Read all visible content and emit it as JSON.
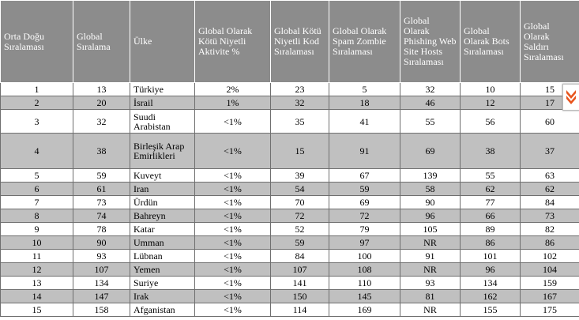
{
  "table": {
    "headers": [
      "Orta Doğu Sıralaması",
      "Global Sıralama",
      "Ülke",
      "Global Olarak Kötü Niyetli Aktivite %",
      "Global Kötü Niyetli Kod Sıralaması",
      "Global Olarak Spam Zombie Sıralaması",
      "Global Olarak Phishing Web Site Hosts Sıralaması",
      "Global Olarak Bots Sıralaması",
      "Global Olarak Saldırı Sıralaması"
    ],
    "rows": [
      [
        "1",
        "13",
        "Türkiye",
        "2%",
        "23",
        "5",
        "32",
        "10",
        "15"
      ],
      [
        "2",
        "20",
        "İsrail",
        "1%",
        "32",
        "18",
        "46",
        "12",
        "17"
      ],
      [
        "3",
        "32",
        "Suudi Arabistan",
        "<1%",
        "35",
        "41",
        "55",
        "56",
        "60"
      ],
      [
        "4",
        "38",
        "Birleşik Arap Emirlikleri",
        "<1%",
        "15",
        "91",
        "69",
        "38",
        "37"
      ],
      [
        "5",
        "59",
        "Kuveyt",
        "<1%",
        "39",
        "67",
        "139",
        "55",
        "63"
      ],
      [
        "6",
        "61",
        "Iran",
        "<1%",
        "54",
        "59",
        "58",
        "62",
        "62"
      ],
      [
        "7",
        "73",
        "Ürdün",
        "<1%",
        "70",
        "69",
        "90",
        "77",
        "84"
      ],
      [
        "8",
        "74",
        "Bahreyn",
        "<1%",
        "72",
        "72",
        "96",
        "66",
        "73"
      ],
      [
        "9",
        "78",
        "Katar",
        "<1%",
        "52",
        "79",
        "105",
        "89",
        "82"
      ],
      [
        "10",
        "90",
        "Umman",
        "<1%",
        "59",
        "97",
        "NR",
        "86",
        "86"
      ],
      [
        "11",
        "93",
        "Lübnan",
        "<1%",
        "84",
        "100",
        "91",
        "101",
        "102"
      ],
      [
        "12",
        "107",
        "Yemen",
        "<1%",
        "107",
        "108",
        "NR",
        "96",
        "104"
      ],
      [
        "13",
        "134",
        "Suriye",
        "<1%",
        "141",
        "110",
        "93",
        "134",
        "159"
      ],
      [
        "14",
        "147",
        "Irak",
        "<1%",
        "150",
        "145",
        "81",
        "162",
        "167"
      ],
      [
        "15",
        "158",
        "Afganistan",
        "<1%",
        "114",
        "169",
        "NR",
        "155",
        "175"
      ]
    ]
  },
  "scroll_button": {
    "icon": "double-chevron-down-icon",
    "color": "#e8551e"
  },
  "colors": {
    "header_bg": "#8c8c8c",
    "alt_row_bg": "#c0c0c0",
    "border": "#6f6f6f"
  }
}
